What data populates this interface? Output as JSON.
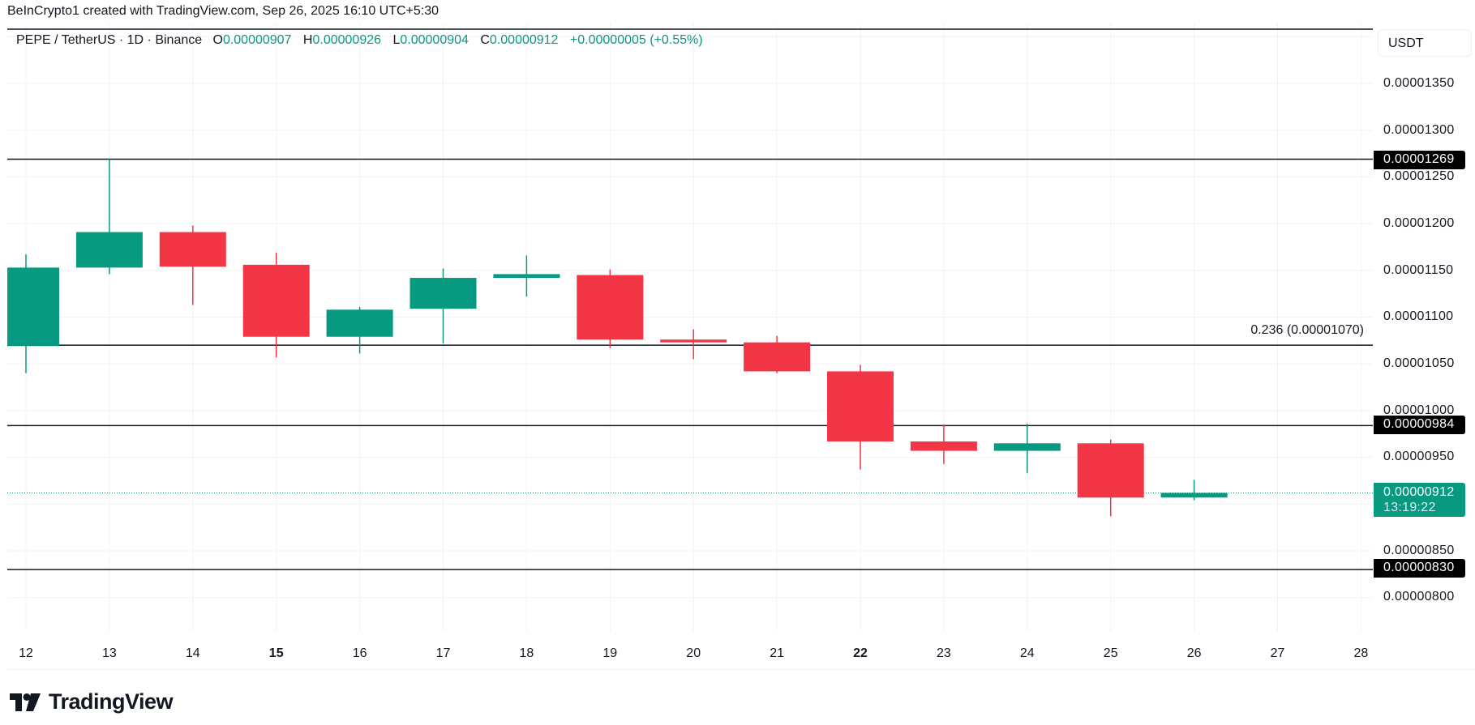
{
  "credit": "BeInCrypto1 created with TradingView.com, Sep 26, 2025 16:10 UTC+5:30",
  "legend": {
    "symbol": "PEPE / TetherUS · 1D · Binance",
    "o_key": "O",
    "o_val": "0.00000907",
    "h_key": "H",
    "h_val": "0.00000926",
    "l_key": "L",
    "l_val": "0.00000904",
    "c_key": "C",
    "c_val": "0.00000912",
    "change": "+0.00000005 (+0.55%)"
  },
  "unit": "USDT",
  "price_axis": [
    "0.00001350",
    "0.00001300",
    "0.00001250",
    "0.00001200",
    "0.00001150",
    "0.00001100",
    "0.00001050",
    "0.00001000",
    "0.00000950",
    "0.00000850",
    "0.00000800"
  ],
  "level_tags": {
    "resistance": "0.00001269",
    "support1": "0.00000984",
    "support2": "0.00000830",
    "current_price": "0.00000912",
    "countdown": "13:19:22"
  },
  "fib_label": "0.236 (0.00001070)",
  "dates": [
    "12",
    "13",
    "14",
    "15",
    "16",
    "17",
    "18",
    "19",
    "20",
    "21",
    "22",
    "23",
    "24",
    "25",
    "26",
    "27",
    "28"
  ],
  "logo_text": "TradingView",
  "colors": {
    "bull": "#089981",
    "bear": "#f23645",
    "grid": "#f0f3f5",
    "level": "#131722"
  },
  "chart_data": {
    "type": "candlestick",
    "title": "PEPE / TetherUS · 1D · Binance",
    "xlabel": "",
    "ylabel": "USDT",
    "x": [
      "Sep 12",
      "Sep 13",
      "Sep 14",
      "Sep 15",
      "Sep 16",
      "Sep 17",
      "Sep 18",
      "Sep 19",
      "Sep 20",
      "Sep 21",
      "Sep 22",
      "Sep 23",
      "Sep 24",
      "Sep 25",
      "Sep 26"
    ],
    "open": [
      1.069e-05,
      1.153e-05,
      1.191e-05,
      1.156e-05,
      1.079e-05,
      1.109e-05,
      1.142e-05,
      1.145e-05,
      1.076e-05,
      1.073e-05,
      1.042e-05,
      9.67e-06,
      9.57e-06,
      9.65e-06,
      9.07e-06
    ],
    "high": [
      1.167e-05,
      1.269e-05,
      1.198e-05,
      1.169e-05,
      1.111e-05,
      1.152e-05,
      1.166e-05,
      1.151e-05,
      1.087e-05,
      1.08e-05,
      1.049e-05,
      9.85e-06,
      9.86e-06,
      9.69e-06,
      9.26e-06
    ],
    "low": [
      1.04e-05,
      1.146e-05,
      1.113e-05,
      1.057e-05,
      1.061e-05,
      1.072e-05,
      1.122e-05,
      1.067e-05,
      1.055e-05,
      1.04e-05,
      9.37e-06,
      9.43e-06,
      9.33e-06,
      8.87e-06,
      9.04e-06
    ],
    "close": [
      1.153e-05,
      1.191e-05,
      1.154e-05,
      1.079e-05,
      1.108e-05,
      1.142e-05,
      1.146e-05,
      1.076e-05,
      1.073e-05,
      1.042e-05,
      9.67e-06,
      9.57e-06,
      9.65e-06,
      9.07e-06,
      9.12e-06
    ],
    "horizontal_levels": [
      1.269e-05,
      1.07e-05,
      9.84e-06,
      8.3e-06
    ],
    "annotations": [
      "0.236 (0.00001070)"
    ],
    "ylim": [
      7.6e-06,
      1.41e-05
    ],
    "yticks": [
      8e-06,
      8.5e-06,
      9.5e-06,
      1e-05,
      1.05e-05,
      1.1e-05,
      1.15e-05,
      1.2e-05,
      1.25e-05,
      1.3e-05,
      1.35e-05
    ],
    "xtick_labels": [
      "12",
      "13",
      "14",
      "15",
      "16",
      "17",
      "18",
      "19",
      "20",
      "21",
      "22",
      "23",
      "24",
      "25",
      "26",
      "27",
      "28"
    ],
    "grid": true,
    "last_price": 9.12e-06,
    "countdown": "13:19:22"
  }
}
